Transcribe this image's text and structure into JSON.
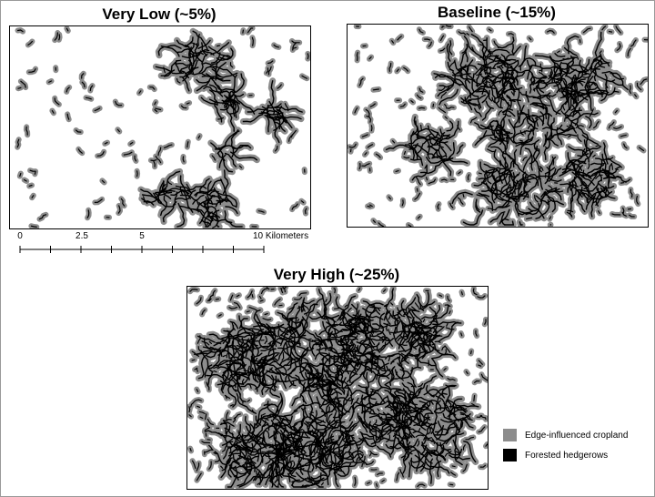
{
  "panels": [
    {
      "title": "Very Low (~5%)",
      "density": 0.05
    },
    {
      "title": "Baseline (~15%)",
      "density": 0.15
    },
    {
      "title": "Very High (~25%)",
      "density": 0.25
    }
  ],
  "scalebar": {
    "tick_labels": [
      "0",
      "2.5",
      "5",
      "10 Kilometers"
    ],
    "tick_km": [
      0,
      2.5,
      5,
      10
    ]
  },
  "legend": {
    "items": [
      {
        "label": "Edge-influenced cropland",
        "color": "#8c8c8c"
      },
      {
        "label": "Forested hedgerows",
        "color": "#000000"
      }
    ]
  }
}
